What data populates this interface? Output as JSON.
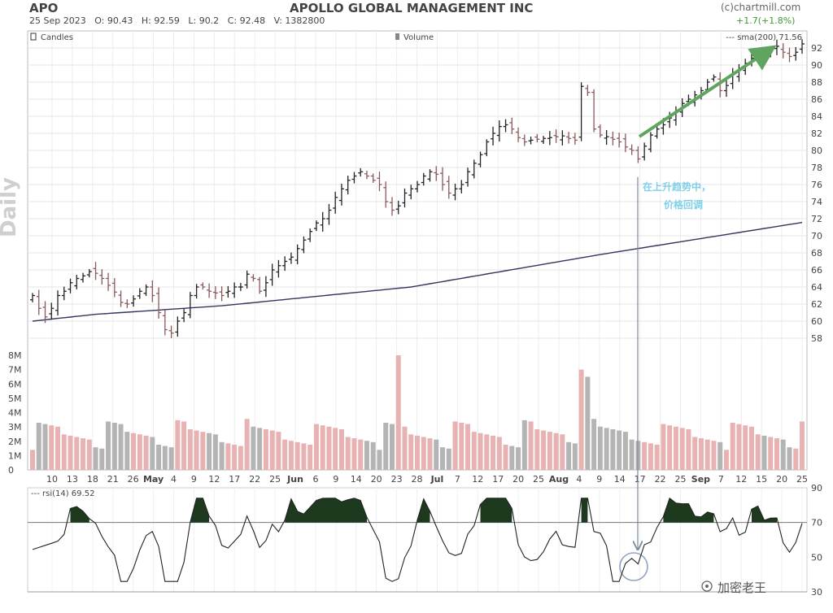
{
  "header": {
    "ticker": "APO",
    "company": "APOLLO GLOBAL MANAGEMENT INC",
    "copyright": "(c)chartmill.com",
    "date": "25 Sep 2023",
    "open": "O: 90.43",
    "high": "H: 92.59",
    "low": "L: 90.2",
    "close": "C: 92.48",
    "volume": "V: 1382800",
    "change": "+1.7(+1.8%)"
  },
  "side_label": "Daily",
  "legend": {
    "candles": "Candles",
    "volume": "Volume",
    "sma": "--- sma(200) 71.56",
    "rsi": "--- rsi(14) 69.52"
  },
  "annotation": {
    "line1": "在上升趋势中，",
    "line2": "价格回调"
  },
  "watermark": "加密老王",
  "colors": {
    "price_bar": "#222222",
    "vol_up": "#e9b2b2",
    "vol_down": "#b4b4b4",
    "sma": "#34345e",
    "trend_arrow": "#5fa55f",
    "annotation": "#7fd0ea",
    "rsi_line": "#222222",
    "rsi_fill": "#1e3a1e"
  },
  "chart_data": [
    {
      "type": "candlestick",
      "title": "APOLLO GLOBAL MANAGEMENT INC",
      "ylim": [
        56,
        94
      ],
      "yticks": [
        58,
        60,
        62,
        64,
        66,
        68,
        70,
        72,
        74,
        76,
        78,
        80,
        82,
        84,
        86,
        88,
        90,
        92
      ],
      "grid": true,
      "xticks": [
        "10",
        "13",
        "18",
        "21",
        "26",
        "May",
        "4",
        "9",
        "12",
        "17",
        "22",
        "25",
        "Jun",
        "6",
        "9",
        "14",
        "20",
        "23",
        "28",
        "Jul",
        "7",
        "12",
        "17",
        "20",
        "25",
        "Aug",
        "4",
        "9",
        "14",
        "17",
        "22",
        "25",
        "Sep",
        "7",
        "12",
        "15",
        "20",
        "25"
      ],
      "closes": [
        63,
        61.5,
        60.5,
        61.5,
        63,
        63.5,
        64.5,
        65,
        65.3,
        65.8,
        65.6,
        65,
        64.2,
        63.4,
        62.2,
        62,
        62.6,
        63.5,
        64,
        63,
        61,
        59,
        58.6,
        60,
        61,
        63,
        64,
        64,
        63.5,
        63.3,
        63,
        63.5,
        64,
        64,
        65.5,
        65,
        63.5,
        64.5,
        66,
        66.5,
        67,
        67.5,
        68.5,
        69.5,
        70.5,
        71.5,
        72,
        73,
        74.5,
        75.5,
        76.5,
        77,
        77.5,
        77,
        76.5,
        76,
        74,
        73,
        73.5,
        75,
        75.5,
        76,
        77,
        77.5,
        77.2,
        76,
        75,
        75.5,
        76,
        77.5,
        78.5,
        79.5,
        81,
        82,
        82.8,
        83,
        82.5,
        81.5,
        81,
        81.2,
        81.3,
        81.4,
        81.5,
        81.6,
        81.7,
        81.4,
        81.2,
        87.5,
        86.8,
        82.5,
        81.8,
        81.6,
        81.3,
        81,
        80.4,
        80,
        79,
        80.5,
        81.8,
        82.5,
        83,
        83.8,
        84.5,
        85.5,
        86,
        86.5,
        87,
        88,
        88.6,
        87,
        87.6,
        89,
        89.5,
        90.2,
        90.8,
        91.5,
        91.2,
        91.7,
        92.2,
        91.5,
        91,
        91.5,
        92.48
      ],
      "sma200": {
        "x": [
          0,
          10,
          30,
          60,
          90,
          122
        ],
        "y": [
          60,
          60.8,
          61.8,
          64,
          67.8,
          71.56
        ]
      }
    },
    {
      "type": "bar",
      "ylabel": "Volume",
      "ylim": [
        0,
        8000000
      ],
      "yticks": [
        "1M",
        "2M",
        "3M",
        "4M",
        "5M",
        "6M",
        "7M",
        "8M"
      ],
      "spikes": [
        {
          "index": 58,
          "value": 8000000
        },
        {
          "index": 87,
          "value": 7000000
        },
        {
          "index": 88,
          "value": 6500000
        }
      ]
    },
    {
      "type": "line",
      "ylabel": "rsi(14)",
      "ylim": [
        30,
        90
      ],
      "yticks": [
        30,
        50,
        70,
        90
      ],
      "overbought": 70,
      "last": 69.52
    }
  ]
}
